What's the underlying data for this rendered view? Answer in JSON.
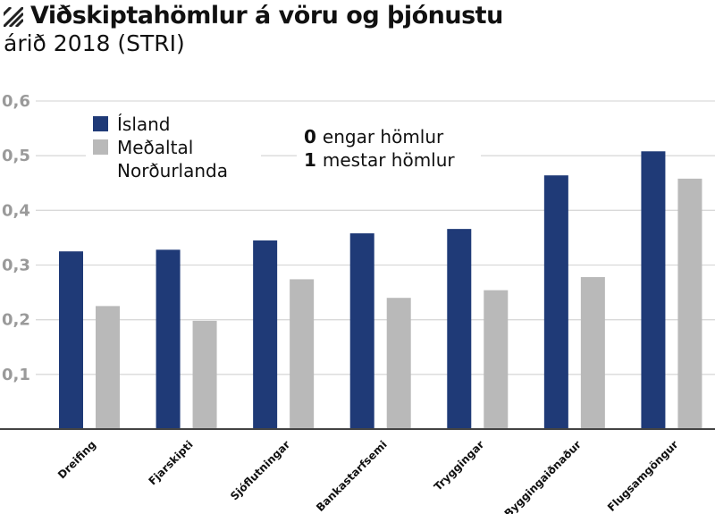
{
  "header": {
    "title": "Viðskiptahömlur á vöru og þjónustu",
    "subtitle": "árið 2018 (STRI)",
    "icon": "hatch-icon"
  },
  "legend": {
    "items": [
      {
        "label_lines": [
          "Ísland"
        ],
        "color": "#1f3a77"
      },
      {
        "label_lines": [
          "Meðaltal",
          "Norðurlanda"
        ],
        "color": "#b9b9b9"
      }
    ]
  },
  "note": {
    "lines": [
      {
        "num": "0",
        "text": "engar hömlur"
      },
      {
        "num": "1",
        "text": "mestar hömlur"
      }
    ]
  },
  "chart_data": {
    "type": "bar",
    "title": "Viðskiptahömlur á vöru og þjónustu",
    "subtitle": "árið 2018 (STRI)",
    "categories": [
      "Dreifing",
      "Fjarskipti",
      "Sjóflutningar",
      "Bankastarfsemi",
      "Tryggingar",
      "Byggingaiðnaður",
      "Flugsamgöngur"
    ],
    "series": [
      {
        "name": "Ísland",
        "color": "#1f3a77",
        "values": [
          0.325,
          0.328,
          0.345,
          0.358,
          0.366,
          0.464,
          0.508
        ]
      },
      {
        "name": "Meðaltal Norðurlanda",
        "color": "#b9b9b9",
        "values": [
          0.225,
          0.198,
          0.274,
          0.24,
          0.254,
          0.278,
          0.458
        ]
      }
    ],
    "ylim": [
      0,
      0.6
    ],
    "yticks": [
      0.1,
      0.2,
      0.3,
      0.4,
      0.5,
      0.6
    ],
    "ytick_labels": [
      "0,1",
      "0,2",
      "0,3",
      "0,4",
      "0,5",
      "0,6"
    ],
    "grid": true,
    "legend_position": "top-left"
  }
}
